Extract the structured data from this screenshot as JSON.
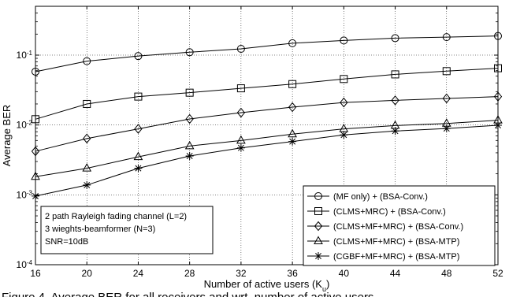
{
  "chart_data": {
    "type": "line",
    "title": "",
    "xlabel": "Number of active users (K",
    "xlabel_sub": "u",
    "xlabel_close": ")",
    "ylabel": "Average BER",
    "x": [
      16,
      20,
      24,
      28,
      32,
      36,
      40,
      44,
      48,
      52
    ],
    "xlim": [
      16,
      52
    ],
    "ylim": [
      0.0001,
      0.5
    ],
    "yscale": "log",
    "xticks": [
      16,
      20,
      24,
      28,
      32,
      36,
      40,
      44,
      48,
      52
    ],
    "yticks": [
      {
        "value": 0.0001,
        "base": "10",
        "exp": "-4"
      },
      {
        "value": 0.001,
        "base": "10",
        "exp": "-3"
      },
      {
        "value": 0.01,
        "base": "10",
        "exp": "-2"
      },
      {
        "value": 0.1,
        "base": "10",
        "exp": "-1"
      }
    ],
    "grid": true,
    "legend_position": "bottom-right",
    "series": [
      {
        "name": "(MF only) + (BSA-Conv.)",
        "marker": "circle",
        "values": [
          0.058,
          0.082,
          0.097,
          0.11,
          0.123,
          0.148,
          0.162,
          0.175,
          0.181,
          0.188
        ]
      },
      {
        "name": "(CLMS+MRC) + (BSA-Conv.)",
        "marker": "square",
        "values": [
          0.0121,
          0.02,
          0.0255,
          0.029,
          0.0335,
          0.0385,
          0.0455,
          0.053,
          0.059,
          0.065
        ]
      },
      {
        "name": "(CLMS+MF+MRC) + (BSA-Conv.)",
        "marker": "diamond",
        "values": [
          0.0042,
          0.0064,
          0.0088,
          0.0122,
          0.015,
          0.018,
          0.021,
          0.0225,
          0.024,
          0.0255
        ]
      },
      {
        "name": "(CLMS+MF+MRC) + (BSA-MTP)",
        "marker": "triangle",
        "values": [
          0.00182,
          0.0024,
          0.0035,
          0.005,
          0.006,
          0.0074,
          0.0088,
          0.0098,
          0.0105,
          0.0117
        ]
      },
      {
        "name": "(CGBF+MF+MRC) + (BSA-MTP)",
        "marker": "star",
        "values": [
          0.00096,
          0.00138,
          0.0024,
          0.0036,
          0.0047,
          0.0058,
          0.0072,
          0.0082,
          0.0089,
          0.0099
        ]
      }
    ],
    "annotations": [
      "2 path Rayleigh fading channel (L=2)",
      "3 wieghts-beamformer (N=3)",
      "SNR=10dB"
    ],
    "caption_fragment": "Figure 4.   Average BER for all receivers and wrt. number of active users"
  }
}
